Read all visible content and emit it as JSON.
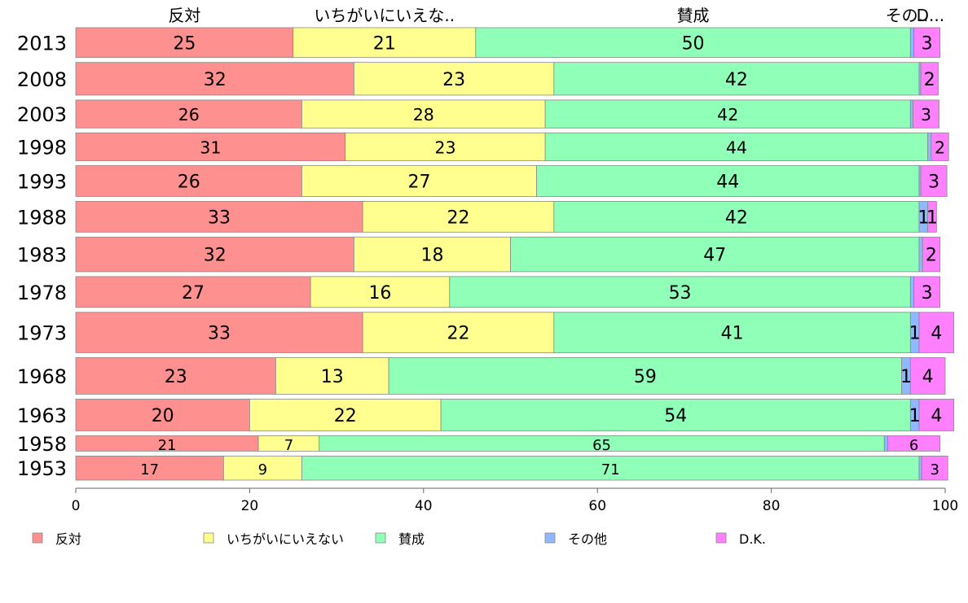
{
  "chart_data": {
    "type": "bar",
    "orientation": "horizontal",
    "stacked": true,
    "categories": [
      "2013",
      "2008",
      "2003",
      "1998",
      "1993",
      "1988",
      "1983",
      "1978",
      "1973",
      "1968",
      "1963",
      "1958",
      "1953"
    ],
    "bar_weights": [
      1.55,
      1.7,
      1.45,
      1.45,
      1.6,
      1.6,
      1.8,
      1.6,
      2.1,
      1.9,
      1.65,
      0.8,
      1.25
    ],
    "series": [
      {
        "name": "反対",
        "color": "#ff9090",
        "values": [
          25,
          32,
          26,
          31,
          26,
          33,
          32,
          27,
          33,
          23,
          20,
          21,
          17
        ]
      },
      {
        "name": "いちがいにいえない",
        "color": "#ffff90",
        "values": [
          21,
          23,
          28,
          23,
          27,
          22,
          18,
          16,
          22,
          13,
          22,
          7,
          9
        ]
      },
      {
        "name": "賛成",
        "color": "#90ffb8",
        "values": [
          50,
          42,
          42,
          44,
          44,
          42,
          47,
          53,
          41,
          59,
          54,
          65,
          71
        ]
      },
      {
        "name": "その他",
        "color": "#90b8ff",
        "values": [
          0.4,
          0.2,
          0.3,
          0.4,
          0.2,
          1,
          0.4,
          0.4,
          1,
          1,
          1,
          0.4,
          0.3
        ]
      },
      {
        "name": "D.K.",
        "color": "#ff80ff",
        "values": [
          3,
          2,
          3,
          2,
          3,
          1,
          2,
          3,
          4,
          4,
          4,
          6,
          3
        ]
      }
    ],
    "value_labels": [
      [
        "25",
        "21",
        "50",
        "",
        "3"
      ],
      [
        "32",
        "23",
        "42",
        "",
        "2"
      ],
      [
        "26",
        "28",
        "42",
        "",
        "3"
      ],
      [
        "31",
        "23",
        "44",
        "",
        "2"
      ],
      [
        "26",
        "27",
        "44",
        "",
        "3"
      ],
      [
        "33",
        "22",
        "42",
        "1",
        "1"
      ],
      [
        "32",
        "18",
        "47",
        "",
        "2"
      ],
      [
        "27",
        "16",
        "53",
        "",
        "3"
      ],
      [
        "33",
        "22",
        "41",
        "1",
        "4"
      ],
      [
        "23",
        "13",
        "59",
        "1",
        "4"
      ],
      [
        "20",
        "22",
        "54",
        "1",
        "4"
      ],
      [
        "21",
        "7",
        "65",
        "",
        "6"
      ],
      [
        "17",
        "9",
        "71",
        "",
        "3"
      ]
    ],
    "top_labels": [
      "反対",
      "いちがいにいえな..",
      "賛成",
      "その..",
      "D..."
    ],
    "xlim": [
      0,
      100
    ],
    "xticks": [
      "0",
      "20",
      "40",
      "60",
      "80",
      "100"
    ],
    "grid": false,
    "legend": {
      "position": "bottom",
      "entries": [
        "反対",
        "いちがいにいえない",
        "賛成",
        "その他",
        "D.K."
      ]
    }
  }
}
